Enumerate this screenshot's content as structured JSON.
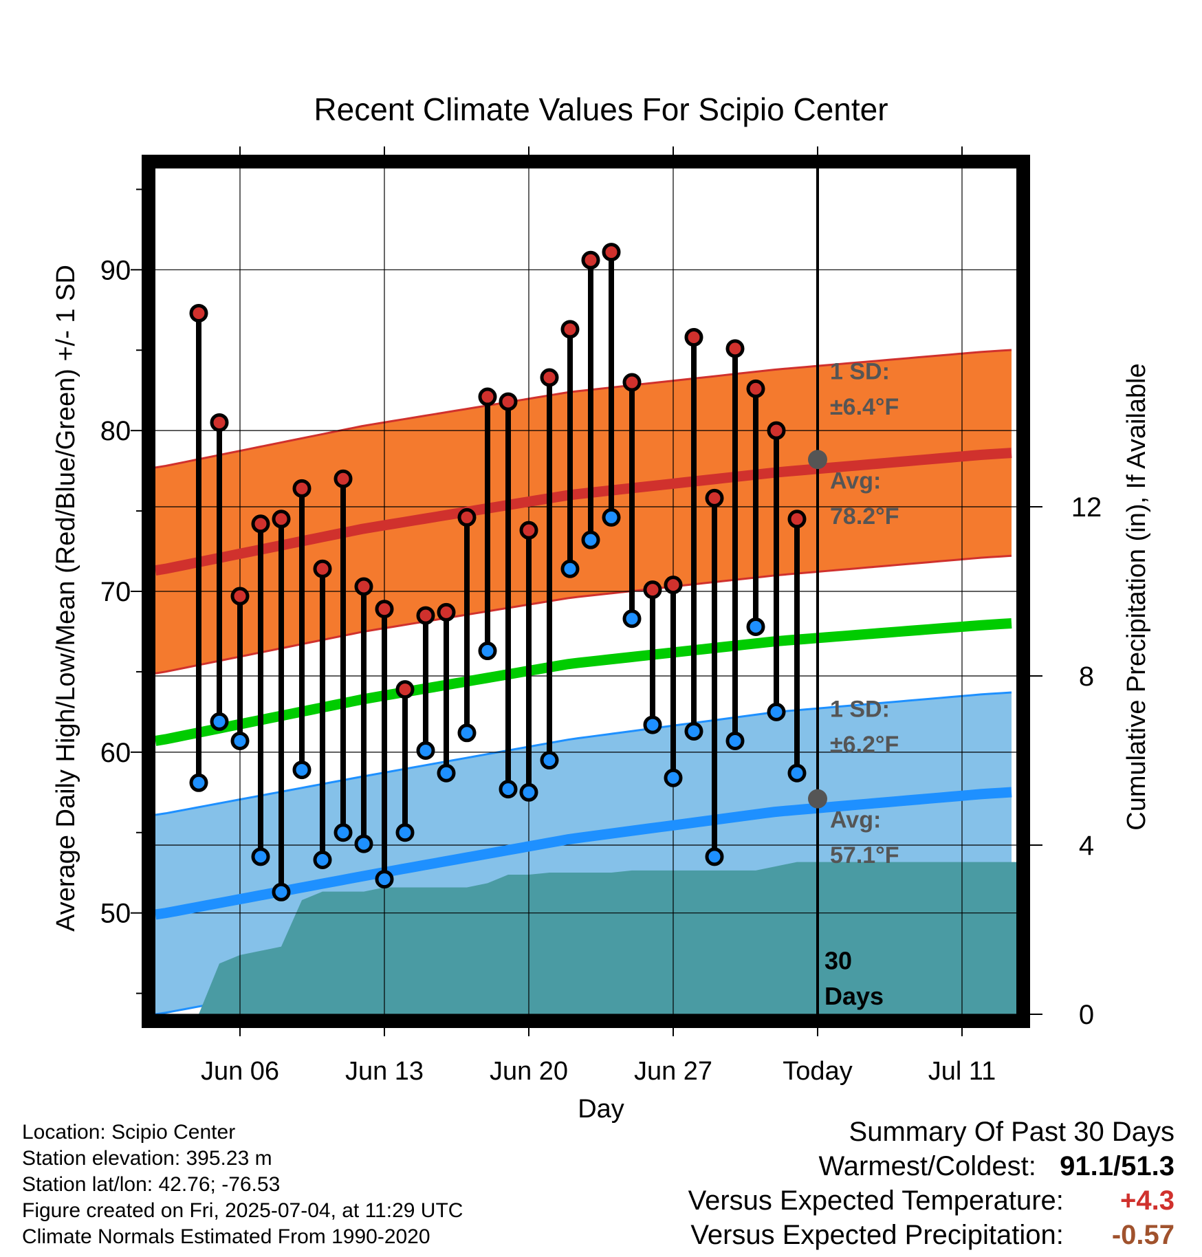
{
  "chart_data": {
    "type": "line",
    "title": "Recent Climate Values For Scipio Center",
    "xlabel": "Day",
    "ylabel": "Average Daily High/Low/Mean (Red/Blue/Green) +/- 1 SD",
    "ylabel_right": "Cumulative Precipitation (in), If Available",
    "x_ticks": [
      "Jun 06",
      "Jun 13",
      "Jun 20",
      "Jun 27",
      "Today",
      "Jul 11"
    ],
    "ylim": [
      43.7,
      96.3
    ],
    "y_ticks": [
      50,
      60,
      70,
      80,
      90
    ],
    "y2lim": [
      0,
      20
    ],
    "y2_ticks": [
      0,
      4,
      8,
      12
    ],
    "days": [
      "Jun 04",
      "Jun 05",
      "Jun 06",
      "Jun 07",
      "Jun 08",
      "Jun 09",
      "Jun 10",
      "Jun 11",
      "Jun 12",
      "Jun 13",
      "Jun 14",
      "Jun 15",
      "Jun 16",
      "Jun 17",
      "Jun 18",
      "Jun 19",
      "Jun 20",
      "Jun 21",
      "Jun 22",
      "Jun 23",
      "Jun 24",
      "Jun 25",
      "Jun 26",
      "Jun 27",
      "Jun 28",
      "Jun 29",
      "Jun 30",
      "Jul 01",
      "Jul 02",
      "Jul 03"
    ],
    "series": [
      {
        "name": "High",
        "color": "#d0312d",
        "values": [
          87.3,
          80.5,
          69.7,
          74.2,
          74.5,
          76.4,
          71.4,
          77.0,
          70.3,
          68.9,
          63.9,
          68.5,
          68.7,
          74.6,
          82.1,
          81.8,
          73.8,
          83.3,
          86.3,
          90.6,
          91.1,
          83.0,
          70.1,
          70.4,
          85.8,
          75.8,
          85.1,
          82.6,
          80.0,
          74.5
        ]
      },
      {
        "name": "Low",
        "color": "#1e90ff",
        "values": [
          58.1,
          61.9,
          60.7,
          53.5,
          51.3,
          58.9,
          53.3,
          55.0,
          54.3,
          52.1,
          55.0,
          60.1,
          58.7,
          61.2,
          66.3,
          57.7,
          57.5,
          59.5,
          71.4,
          73.2,
          74.6,
          68.3,
          61.7,
          58.4,
          61.3,
          53.5,
          60.7,
          67.8,
          62.5,
          58.7
        ]
      }
    ],
    "normals_x_days": [
      -2,
      8,
      18,
      28,
      38,
      43
    ],
    "normal_high_avg": [
      71.3,
      73.9,
      76.0,
      77.4,
      78.5,
      78.9
    ],
    "normal_high_sd": 6.4,
    "normal_low_avg": [
      49.9,
      52.3,
      54.6,
      56.3,
      57.4,
      57.8
    ],
    "normal_low_sd": 6.2,
    "normal_mean": [
      60.7,
      63.3,
      65.5,
      66.9,
      67.9,
      68.3
    ],
    "precip_cumulative": [
      0.0,
      1.2,
      1.4,
      1.5,
      1.6,
      2.7,
      2.9,
      2.9,
      2.9,
      3.0,
      3.0,
      3.0,
      3.0,
      3.0,
      3.1,
      3.3,
      3.3,
      3.35,
      3.35,
      3.35,
      3.35,
      3.4,
      3.4,
      3.4,
      3.4,
      3.4,
      3.4,
      3.4,
      3.5,
      3.6
    ],
    "colors": {
      "high_sd_band": "#f47a2e",
      "high_avg": "#d0312d",
      "low_sd_band": "#85c1e9",
      "low_avg": "#1e90ff",
      "mean": "#00cc00",
      "precip": "#4a9ba3",
      "marker_gray": "#555555"
    },
    "grid": true
  },
  "annotations": {
    "high_sd_label": "1 SD:",
    "high_sd_value": "±6.4°F",
    "high_avg_label": "Avg:",
    "high_avg_value": "78.2°F",
    "low_sd_label": "1 SD:",
    "low_sd_value": "±6.2°F",
    "low_avg_label": "Avg:",
    "low_avg_value": "57.1°F",
    "days_count": "30",
    "days_word": "Days"
  },
  "footer": {
    "location": "Location: Scipio Center",
    "elevation": "Station elevation: 395.23 m",
    "latlon": "Station lat/lon: 42.76; -76.53",
    "created": "Figure created on Fri, 2025-07-04, at 11:29 UTC",
    "normals": "Climate Normals Estimated From 1990-2020"
  },
  "summary": {
    "title": "Summary Of Past 30 Days",
    "warmest_coldest_label": "Warmest/Coldest:",
    "warmest_coldest_value": "91.1/51.3",
    "temp_label": "Versus Expected Temperature:",
    "temp_value": "+4.3",
    "temp_color": "#d0312d",
    "precip_label": "Versus Expected Precipitation:",
    "precip_value": "-0.57",
    "precip_color": "#a0522d"
  }
}
